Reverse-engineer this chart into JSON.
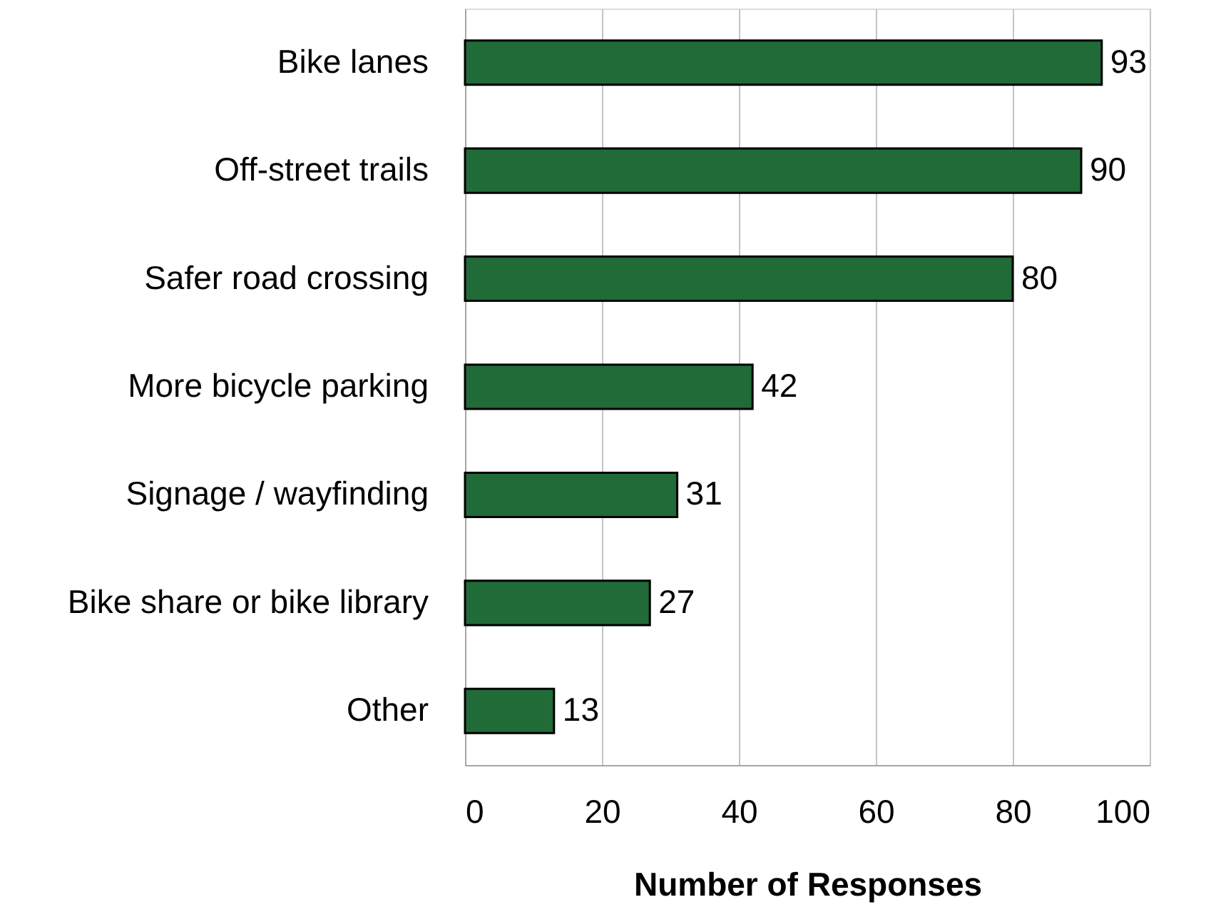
{
  "chart_data": {
    "type": "bar",
    "orientation": "horizontal",
    "categories": [
      "Bike lanes",
      "Off-street trails",
      "Safer road crossing",
      "More bicycle parking",
      "Signage / wayfinding",
      "Bike share or bike library",
      "Other"
    ],
    "values": [
      93,
      90,
      80,
      42,
      31,
      27,
      13
    ],
    "color": "#206b38",
    "xlabel": "Number of Responses",
    "xlim": [
      0,
      100
    ],
    "xticks": [
      0,
      20,
      40,
      60,
      80,
      100
    ],
    "grid": "x",
    "data_labels": true
  }
}
